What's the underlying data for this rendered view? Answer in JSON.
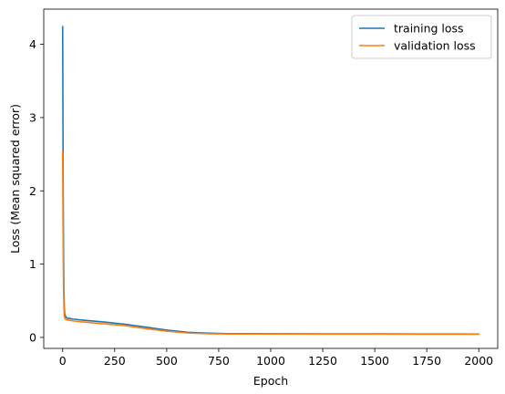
{
  "chart_data": {
    "type": "line",
    "title": "",
    "xlabel": "Epoch",
    "ylabel": "Loss (Mean squared error)",
    "xlim": [
      -91,
      2091
    ],
    "ylim": [
      -0.15,
      4.48
    ],
    "xticks": [
      0,
      250,
      500,
      750,
      1000,
      1250,
      1500,
      1750,
      2000
    ],
    "xtick_labels": [
      "0",
      "250",
      "500",
      "750",
      "1000",
      "1250",
      "1500",
      "1750",
      "2000"
    ],
    "yticks": [
      0,
      1,
      2,
      3,
      4
    ],
    "ytick_labels": [
      "0",
      "1",
      "2",
      "3",
      "4"
    ],
    "grid": false,
    "legend_position": "upper right",
    "series": [
      {
        "name": "training loss",
        "color": "#1f77b4",
        "x": [
          0,
          2,
          4,
          6,
          8,
          10,
          15,
          20,
          30,
          50,
          100,
          200,
          300,
          400,
          500,
          600,
          700,
          800,
          1000,
          1250,
          1500,
          1750,
          2000
        ],
        "y": [
          4.24,
          2.3,
          1.2,
          0.6,
          0.4,
          0.32,
          0.28,
          0.265,
          0.26,
          0.25,
          0.235,
          0.21,
          0.18,
          0.14,
          0.1,
          0.07,
          0.058,
          0.052,
          0.05,
          0.049,
          0.048,
          0.047,
          0.046
        ]
      },
      {
        "name": "validation loss",
        "color": "#ff7f0e",
        "x": [
          0,
          2,
          4,
          6,
          8,
          10,
          15,
          20,
          30,
          50,
          100,
          200,
          300,
          400,
          500,
          600,
          700,
          800,
          1000,
          1250,
          1500,
          1750,
          2000
        ],
        "y": [
          2.53,
          1.3,
          0.7,
          0.4,
          0.3,
          0.26,
          0.245,
          0.24,
          0.235,
          0.225,
          0.21,
          0.185,
          0.16,
          0.12,
          0.085,
          0.06,
          0.05,
          0.047,
          0.046,
          0.045,
          0.045,
          0.044,
          0.044
        ]
      }
    ]
  }
}
